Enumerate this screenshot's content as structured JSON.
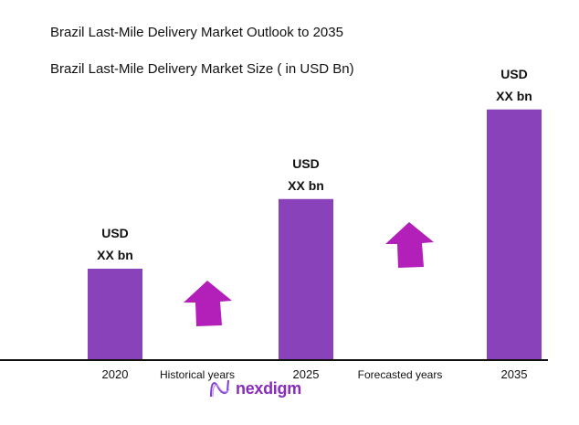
{
  "chart_data": {
    "type": "bar",
    "title": "Brazil Last-Mile Delivery Market Outlook to 2035",
    "subtitle": "Brazil Last-Mile Delivery Market Size ( in USD Bn)",
    "categories": [
      "2020",
      "2025",
      "2035"
    ],
    "values": [
      100,
      177,
      276
    ],
    "value_note_unit": "relative bar height (2020 = 100); actual values not disclosed",
    "data_labels": [
      [
        "USD",
        "XX bn"
      ],
      [
        "USD",
        "XX bn"
      ],
      [
        "USD",
        "XX bn"
      ]
    ],
    "period_labels": [
      "Historical years",
      "Forecasted years"
    ],
    "bar_color": "#8a42bb",
    "arrow_color": "#b31fb9",
    "grid": false,
    "legend": "none"
  },
  "brand": {
    "name": "nexdigm",
    "color": "#8a2bbf"
  }
}
